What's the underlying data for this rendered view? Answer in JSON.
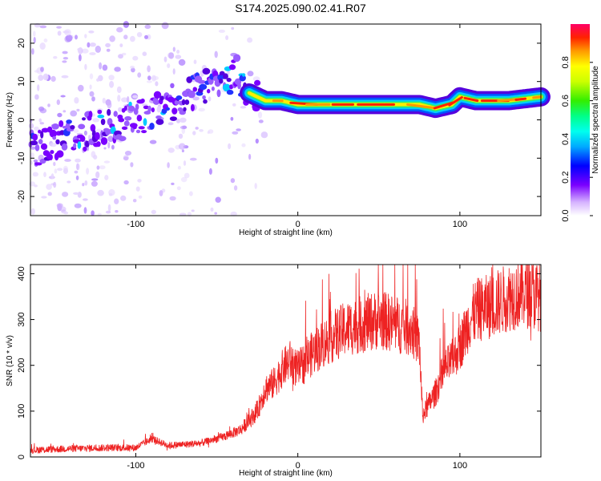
{
  "title": "S174.2025.090.02.41.R07",
  "chart_data": [
    {
      "type": "heatmap",
      "xlabel": "Height of straight line (km)",
      "ylabel": "Frequency (Hz)",
      "xlim": [
        -165,
        150
      ],
      "ylim": [
        -25,
        25
      ],
      "xticks": [
        -100,
        0,
        100
      ],
      "yticks": [
        -20,
        -10,
        0,
        10,
        20
      ],
      "colorbar": {
        "label": "Normalized spectral amplitude",
        "range": [
          0,
          1
        ],
        "ticks": [
          0.0,
          0.2,
          0.4,
          0.6,
          0.8
        ],
        "colormap": "rainbow"
      },
      "ridge": {
        "x": [
          -165,
          -140,
          -120,
          -100,
          -80,
          -60,
          -45,
          -38,
          -30,
          -20,
          -10,
          0,
          20,
          50,
          75,
          85,
          95,
          100,
          110,
          130,
          150
        ],
        "y": [
          -8,
          -4,
          -2,
          0,
          4,
          8,
          10,
          12,
          7,
          5,
          5,
          4,
          4,
          4,
          4,
          3,
          4,
          6,
          5,
          5,
          6
        ]
      }
    },
    {
      "type": "line",
      "xlabel": "Height of straight line (km)",
      "ylabel": "SNR (10 * v/v)",
      "xlim": [
        -165,
        150
      ],
      "ylim": [
        0,
        420
      ],
      "xticks": [
        -100,
        0,
        100
      ],
      "yticks": [
        0,
        100,
        200,
        300,
        400
      ],
      "color": "#ee2222",
      "trend": {
        "x": [
          -165,
          -140,
          -120,
          -100,
          -90,
          -80,
          -60,
          -45,
          -35,
          -25,
          -20,
          -15,
          -10,
          -5,
          0,
          10,
          20,
          30,
          40,
          50,
          60,
          70,
          75,
          77,
          80,
          85,
          90,
          95,
          100,
          105,
          110,
          120,
          130,
          140,
          150
        ],
        "y": [
          15,
          18,
          20,
          20,
          40,
          25,
          30,
          45,
          60,
          100,
          150,
          160,
          190,
          210,
          190,
          230,
          260,
          280,
          290,
          300,
          290,
          280,
          250,
          90,
          110,
          140,
          190,
          210,
          240,
          290,
          320,
          330,
          350,
          360,
          350
        ]
      }
    }
  ]
}
